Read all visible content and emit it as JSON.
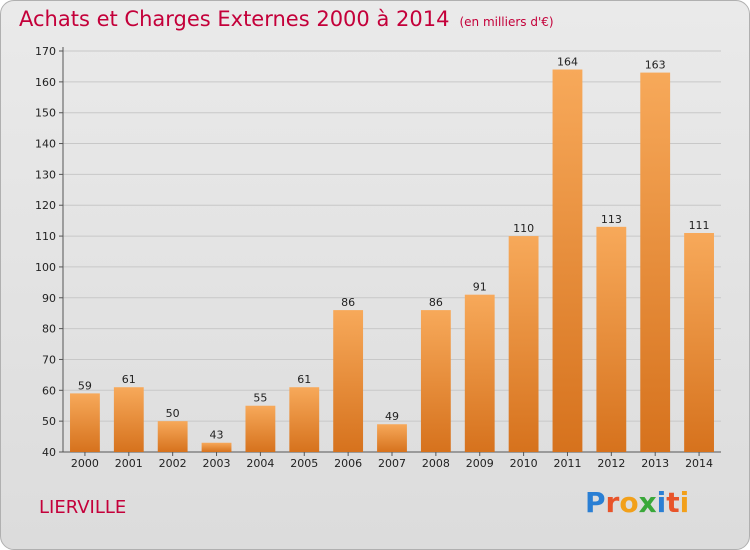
{
  "title": "Achats et Charges Externes 2000 à 2014",
  "subtitle": "(en milliers d'€)",
  "commune": "LIERVILLE",
  "logo": {
    "text": "Proxiti",
    "colors": [
      "#2a7fd4",
      "#e8542a",
      "#f2a01a",
      "#3aa83a",
      "#2a7fd4",
      "#e8542a",
      "#f2a01a"
    ]
  },
  "colors": {
    "bar_light": "#f7a95a",
    "bar_dark": "#d6721d",
    "title": "#c4003a"
  },
  "chart_data": {
    "type": "bar",
    "categories": [
      "2000",
      "2001",
      "2002",
      "2003",
      "2004",
      "2005",
      "2006",
      "2007",
      "2008",
      "2009",
      "2010",
      "2011",
      "2012",
      "2013",
      "2014"
    ],
    "values": [
      59,
      61,
      50,
      43,
      55,
      61,
      86,
      49,
      86,
      91,
      110,
      164,
      113,
      163,
      111
    ],
    "title": "Achats et Charges Externes 2000 à 2014",
    "subtitle": "(en milliers d'€)",
    "xlabel": "",
    "ylabel": "",
    "ylim": [
      40,
      170
    ],
    "yticks": [
      40,
      50,
      60,
      70,
      80,
      90,
      100,
      110,
      120,
      130,
      140,
      150,
      160,
      170
    ],
    "grid": true,
    "data_labels": true
  }
}
